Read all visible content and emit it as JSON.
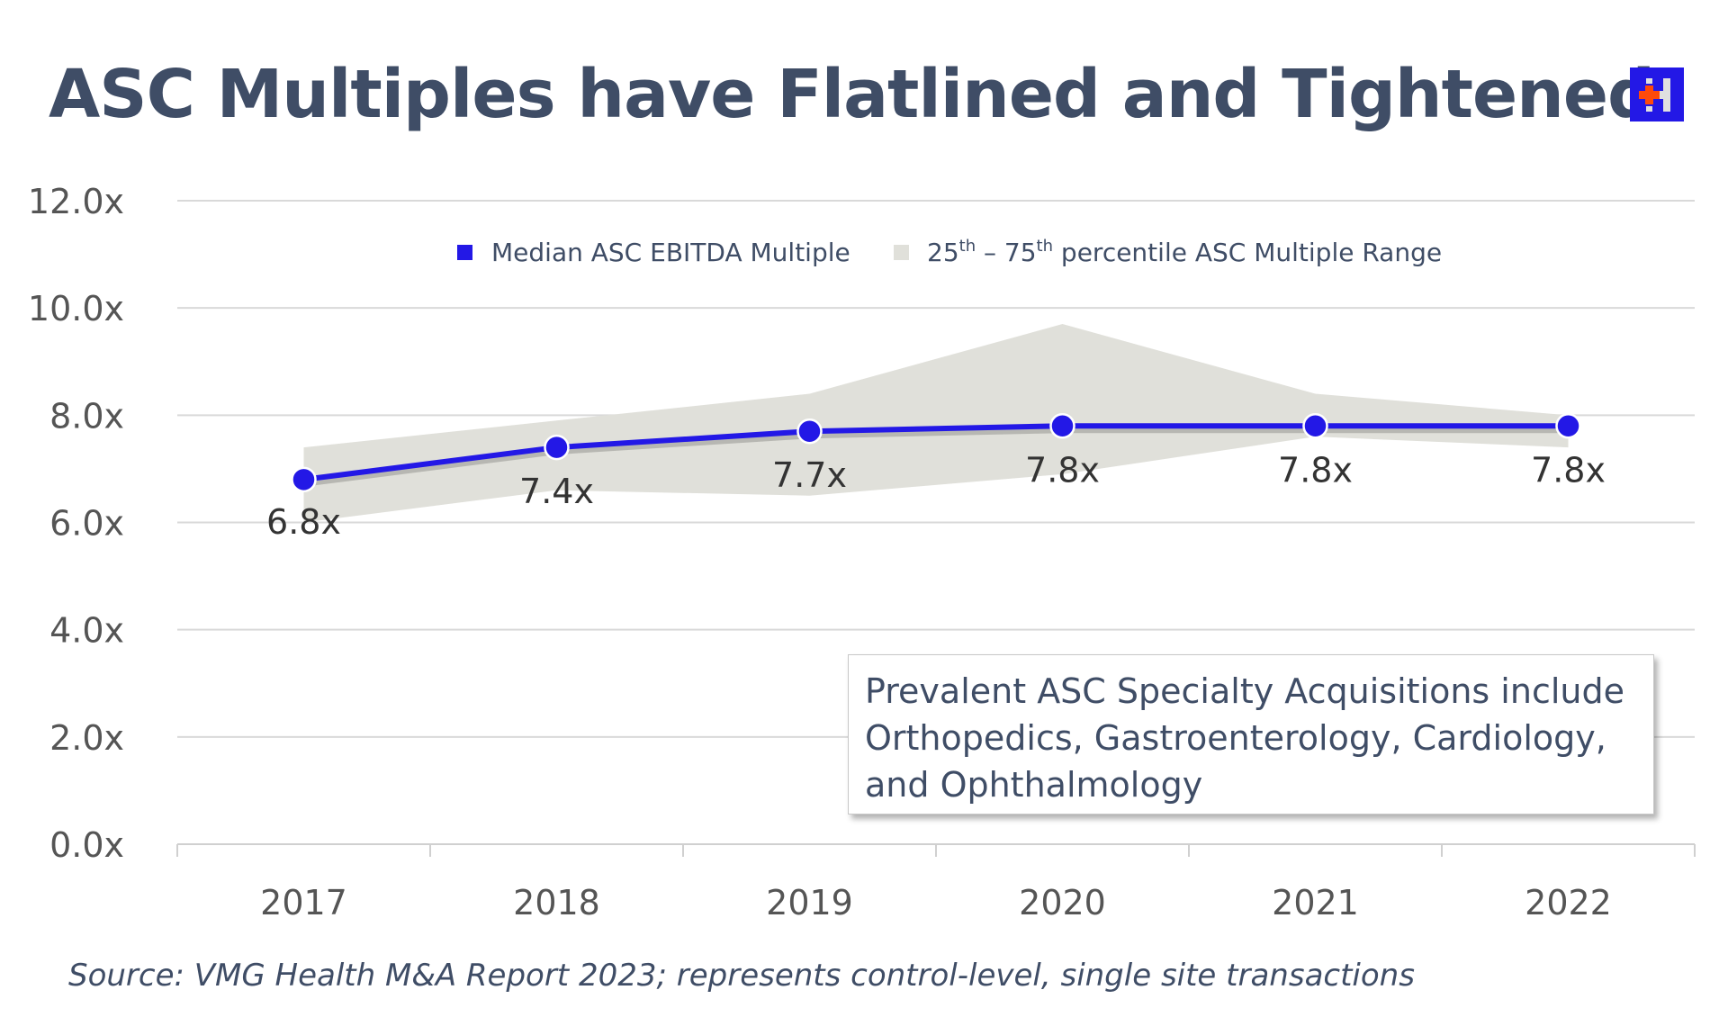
{
  "title": "ASC Multiples have Flatlined and Tightened",
  "logo_text": "H",
  "annotation": "Prevalent ASC Specialty Acquisitions include Orthopedics, Gastroenterology, Cardiology, and Ophthalmology",
  "source": "Source: VMG Health M&A Report 2023; represents control-level, single site transactions",
  "chart_data": {
    "type": "line",
    "categories": [
      "2017",
      "2018",
      "2019",
      "2020",
      "2021",
      "2022"
    ],
    "series": [
      {
        "name": "Median ASC EBITDA Multiple",
        "values": [
          6.8,
          7.4,
          7.7,
          7.8,
          7.8,
          7.8
        ],
        "labels": [
          "6.8x",
          "7.4x",
          "7.7x",
          "7.8x",
          "7.8x",
          "7.8x"
        ],
        "color": "#2318e6"
      },
      {
        "name": "25th – 75th percentile ASC Multiple Range",
        "type": "area-range",
        "lower": [
          6.0,
          6.6,
          6.5,
          6.9,
          7.6,
          7.4
        ],
        "upper": [
          7.4,
          7.9,
          8.4,
          9.7,
          8.4,
          8.0
        ],
        "color": "#e0e0da"
      }
    ],
    "legend": [
      {
        "text": "Median ASC EBITDA Multiple"
      },
      {
        "pre": "25",
        "sup1": "th",
        "mid": " – 75",
        "sup2": "th",
        "post": " percentile ASC Multiple Range"
      }
    ],
    "yticks": [
      "0.0x",
      "2.0x",
      "4.0x",
      "6.0x",
      "8.0x",
      "10.0x",
      "12.0x"
    ],
    "ylim": [
      0,
      12
    ],
    "grid": true,
    "legend_position": "top-center"
  }
}
